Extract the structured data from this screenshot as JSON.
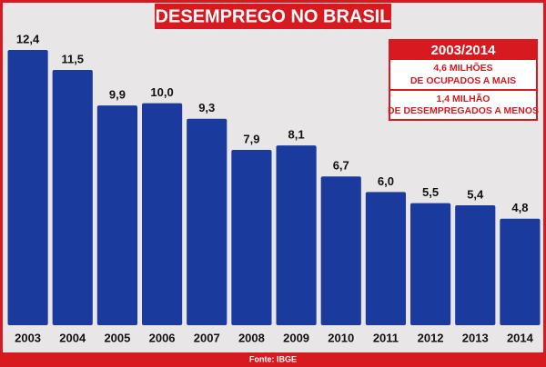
{
  "chart_data": {
    "type": "bar",
    "title": "DESEMPREGO NO BRASIL",
    "categories": [
      "2003",
      "2004",
      "2005",
      "2006",
      "2007",
      "2008",
      "2009",
      "2010",
      "2011",
      "2012",
      "2013",
      "2014"
    ],
    "values": [
      12.4,
      11.5,
      9.9,
      10.0,
      9.3,
      7.9,
      8.1,
      6.7,
      6.0,
      5.5,
      5.4,
      4.8
    ],
    "value_labels": [
      "12,4",
      "11,5",
      "9,9",
      "10,0",
      "9,3",
      "7,9",
      "8,1",
      "6,7",
      "6,0",
      "5,5",
      "5,4",
      "4,8"
    ],
    "color": "#1b3a9e",
    "annotation": {
      "title": "2003/2014",
      "notes": [
        [
          "4,6 MILHÕES",
          "DE OCUPADOS A MAIS"
        ],
        [
          "1,4 MILHÃO",
          "DE DESEMPREGADOS A MENOS"
        ]
      ]
    },
    "source": "Fonte: IBGE"
  }
}
